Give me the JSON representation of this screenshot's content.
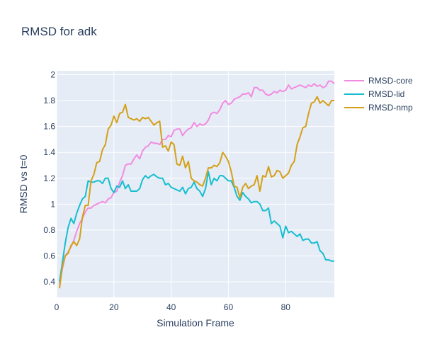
{
  "chart_data": {
    "type": "line",
    "title": "RMSD for adk",
    "xlabel": "Simulation Frame",
    "ylabel": "RMSD vs t=0",
    "xlim": [
      0,
      97
    ],
    "ylim": [
      0.28,
      2.03
    ],
    "x_ticks": [
      0,
      20,
      40,
      60,
      80
    ],
    "y_ticks": [
      0.4,
      0.6,
      0.8,
      1,
      1.2,
      1.4,
      1.6,
      1.8,
      2
    ],
    "grid": true,
    "legend_position": "top-right",
    "background_color": "#e5ecf6",
    "series": [
      {
        "name": "RMSD-core",
        "color": "#f28be0",
        "x": [
          1,
          2,
          3,
          4,
          5,
          6,
          7,
          8,
          9,
          10,
          11,
          12,
          13,
          14,
          15,
          16,
          17,
          18,
          19,
          20,
          21,
          22,
          23,
          24,
          25,
          26,
          27,
          28,
          29,
          30,
          31,
          32,
          33,
          34,
          35,
          36,
          37,
          38,
          39,
          40,
          41,
          42,
          43,
          44,
          45,
          46,
          47,
          48,
          49,
          50,
          51,
          52,
          53,
          54,
          55,
          56,
          57,
          58,
          59,
          60,
          61,
          62,
          63,
          64,
          65,
          66,
          67,
          68,
          69,
          70,
          71,
          72,
          73,
          74,
          75,
          76,
          77,
          78,
          79,
          80,
          81,
          82,
          83,
          84,
          85,
          86,
          87,
          88,
          89,
          90,
          91,
          92,
          93,
          94,
          95,
          96,
          97
        ],
        "values": [
          0.38,
          0.5,
          0.6,
          0.63,
          0.67,
          0.72,
          0.79,
          0.85,
          0.89,
          0.94,
          0.97,
          0.97,
          0.99,
          1.0,
          1.01,
          1.02,
          1.01,
          1.04,
          1.05,
          1.09,
          1.1,
          1.17,
          1.22,
          1.3,
          1.31,
          1.31,
          1.35,
          1.38,
          1.35,
          1.41,
          1.44,
          1.45,
          1.48,
          1.47,
          1.47,
          1.46,
          1.5,
          1.5,
          1.53,
          1.52,
          1.57,
          1.58,
          1.58,
          1.53,
          1.56,
          1.58,
          1.59,
          1.63,
          1.6,
          1.62,
          1.61,
          1.62,
          1.65,
          1.7,
          1.71,
          1.7,
          1.73,
          1.78,
          1.8,
          1.77,
          1.78,
          1.81,
          1.82,
          1.83,
          1.85,
          1.85,
          1.86,
          1.83,
          1.9,
          1.9,
          1.88,
          1.88,
          1.85,
          1.84,
          1.85,
          1.87,
          1.86,
          1.88,
          1.87,
          1.88,
          1.92,
          1.89,
          1.9,
          1.91,
          1.92,
          1.91,
          1.9,
          1.92,
          1.91,
          1.93,
          1.91,
          1.92,
          1.9,
          1.91,
          1.95,
          1.95,
          1.93
        ]
      },
      {
        "name": "RMSD-lid",
        "color": "#17becf",
        "x": [
          1,
          2,
          3,
          4,
          5,
          6,
          7,
          8,
          9,
          10,
          11,
          12,
          13,
          14,
          15,
          16,
          17,
          18,
          19,
          20,
          21,
          22,
          23,
          24,
          25,
          26,
          27,
          28,
          29,
          30,
          31,
          32,
          33,
          34,
          35,
          36,
          37,
          38,
          39,
          40,
          41,
          42,
          43,
          44,
          45,
          46,
          47,
          48,
          49,
          50,
          51,
          52,
          53,
          54,
          55,
          56,
          57,
          58,
          59,
          60,
          61,
          62,
          63,
          64,
          65,
          66,
          67,
          68,
          69,
          70,
          71,
          72,
          73,
          74,
          75,
          76,
          77,
          78,
          79,
          80,
          81,
          82,
          83,
          84,
          85,
          86,
          87,
          88,
          89,
          90,
          91,
          92,
          93,
          94,
          95,
          96,
          97
        ],
        "values": [
          0.4,
          0.55,
          0.7,
          0.82,
          0.89,
          0.85,
          0.93,
          0.99,
          1.04,
          1.06,
          1.18,
          1.17,
          1.17,
          1.18,
          1.18,
          1.16,
          1.2,
          1.2,
          1.12,
          1.09,
          1.14,
          1.13,
          1.18,
          1.12,
          1.15,
          1.1,
          1.1,
          1.1,
          1.12,
          1.19,
          1.22,
          1.2,
          1.22,
          1.23,
          1.21,
          1.2,
          1.2,
          1.15,
          1.16,
          1.13,
          1.12,
          1.11,
          1.1,
          1.13,
          1.08,
          1.12,
          1.13,
          1.17,
          1.12,
          1.1,
          1.06,
          1.12,
          1.25,
          1.15,
          1.2,
          1.18,
          1.22,
          1.22,
          1.2,
          1.18,
          1.18,
          1.13,
          1.06,
          1.03,
          1.09,
          1.06,
          1.04,
          1.01,
          1.02,
          1.02,
          1.0,
          0.95,
          0.95,
          0.97,
          0.85,
          0.87,
          0.85,
          0.83,
          0.74,
          0.83,
          0.78,
          0.79,
          0.77,
          0.75,
          0.77,
          0.72,
          0.73,
          0.73,
          0.7,
          0.7,
          0.71,
          0.64,
          0.62,
          0.57,
          0.57,
          0.56,
          0.56
        ]
      },
      {
        "name": "RMSD-nmp",
        "color": "#d4a017",
        "x": [
          1,
          2,
          3,
          4,
          5,
          6,
          7,
          8,
          9,
          10,
          11,
          12,
          13,
          14,
          15,
          16,
          17,
          18,
          19,
          20,
          21,
          22,
          23,
          24,
          25,
          26,
          27,
          28,
          29,
          30,
          31,
          32,
          33,
          34,
          35,
          36,
          37,
          38,
          39,
          40,
          41,
          42,
          43,
          44,
          45,
          46,
          47,
          48,
          49,
          50,
          51,
          52,
          53,
          54,
          55,
          56,
          57,
          58,
          59,
          60,
          61,
          62,
          63,
          64,
          65,
          66,
          67,
          68,
          69,
          70,
          71,
          72,
          73,
          74,
          75,
          76,
          77,
          78,
          79,
          80,
          81,
          82,
          83,
          84,
          85,
          86,
          87,
          88,
          89,
          90,
          91,
          92,
          93,
          94,
          95,
          96,
          97
        ],
        "values": [
          0.35,
          0.52,
          0.6,
          0.62,
          0.68,
          0.71,
          0.68,
          0.73,
          0.9,
          0.99,
          0.99,
          1.18,
          1.23,
          1.32,
          1.33,
          1.42,
          1.46,
          1.58,
          1.61,
          1.68,
          1.63,
          1.7,
          1.71,
          1.77,
          1.67,
          1.66,
          1.65,
          1.66,
          1.64,
          1.67,
          1.66,
          1.67,
          1.64,
          1.61,
          1.63,
          1.64,
          1.44,
          1.45,
          1.41,
          1.48,
          1.46,
          1.31,
          1.3,
          1.37,
          1.28,
          1.33,
          1.2,
          1.18,
          1.17,
          1.15,
          1.14,
          1.2,
          1.28,
          1.28,
          1.3,
          1.29,
          1.32,
          1.4,
          1.37,
          1.33,
          1.25,
          1.14,
          1.13,
          1.05,
          1.13,
          1.16,
          1.12,
          1.14,
          1.15,
          1.22,
          1.1,
          1.22,
          1.21,
          1.29,
          1.21,
          1.22,
          1.26,
          1.25,
          1.2,
          1.22,
          1.24,
          1.3,
          1.33,
          1.46,
          1.52,
          1.59,
          1.6,
          1.7,
          1.78,
          1.79,
          1.83,
          1.78,
          1.8,
          1.78,
          1.76,
          1.8,
          1.8
        ]
      }
    ]
  }
}
